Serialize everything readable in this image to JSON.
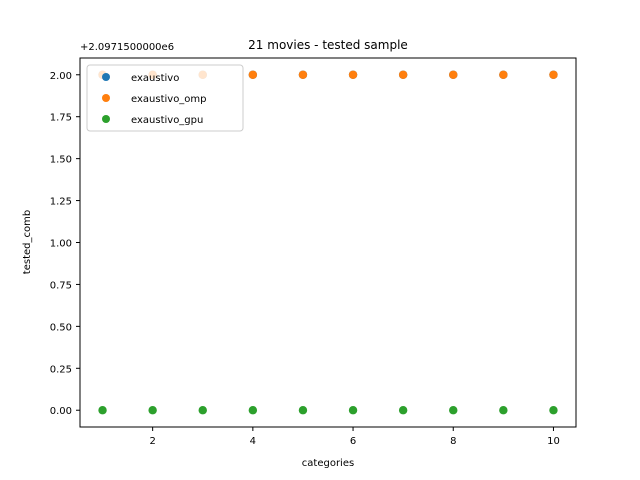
{
  "chart_data": {
    "type": "scatter",
    "title": "21 movies - tested sample",
    "xlabel": "categories",
    "ylabel": "tested_comb",
    "y_offset_text": "+2.0971500000e6",
    "xlim": [
      0.55,
      10.45
    ],
    "ylim": [
      -0.1,
      2.1
    ],
    "x_ticks": [
      2,
      4,
      6,
      8,
      10
    ],
    "x_tick_labels": [
      "2",
      "4",
      "6",
      "8",
      "10"
    ],
    "y_ticks": [
      0,
      0.25,
      0.5,
      0.75,
      1.0,
      1.25,
      1.5,
      1.75,
      2.0
    ],
    "y_tick_labels": [
      "0.00",
      "0.25",
      "0.50",
      "0.75",
      "1.00",
      "1.25",
      "1.50",
      "1.75",
      "2.00"
    ],
    "grid": false,
    "legend_position": "upper-left",
    "series": [
      {
        "name": "exaustivo",
        "color": "#1f77b4",
        "x": [
          1,
          2,
          3,
          4,
          5,
          6,
          7,
          8,
          9,
          10
        ],
        "y": [
          2,
          2,
          2,
          2,
          2,
          2,
          2,
          2,
          2,
          2
        ]
      },
      {
        "name": "exaustivo_omp",
        "color": "#ff7f0e",
        "x": [
          1,
          2,
          3,
          4,
          5,
          6,
          7,
          8,
          9,
          10
        ],
        "y": [
          2,
          2,
          2,
          2,
          2,
          2,
          2,
          2,
          2,
          2
        ]
      },
      {
        "name": "exaustivo_gpu",
        "color": "#2ca02c",
        "x": [
          1,
          2,
          3,
          4,
          5,
          6,
          7,
          8,
          9,
          10
        ],
        "y": [
          0,
          0,
          0,
          0,
          0,
          0,
          0,
          0,
          0,
          0
        ]
      }
    ]
  }
}
